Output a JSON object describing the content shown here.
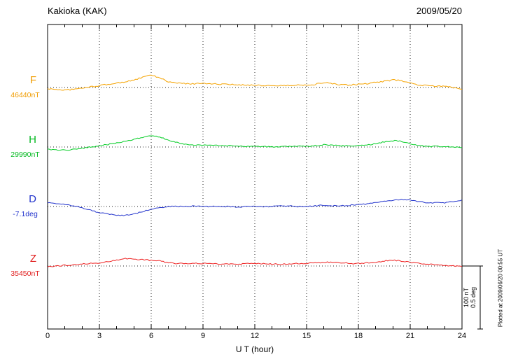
{
  "chart_data": {
    "type": "line",
    "title": "Kakioka (KAK)",
    "date_label": "2009/05/20",
    "xlabel": "U T (hour)",
    "x_range": [
      0,
      24
    ],
    "x_ticks": [
      0,
      3,
      6,
      9,
      12,
      15,
      18,
      21,
      24
    ],
    "x_minor_tick_step": 1,
    "x_start": 0,
    "x_step_hours": 0.5,
    "grid": "dotted vertical lines at 3-hour ticks, dotted horizontal baseline per channel",
    "legend_position": "left margin channel labels",
    "scale_bar": {
      "nT": 100,
      "deg": 0.5,
      "label_nT": "100 nT",
      "label_deg": "0.5 deg"
    },
    "plotted_at": "Plotted at 2009/06/20 00:55 UT",
    "series": [
      {
        "id": "F",
        "label": "F",
        "unit": "nT",
        "baseline_value": 46440,
        "baseline_label": "46440nT",
        "color": "#f5a300",
        "label_color": "#f09c00",
        "noise": 1.0,
        "values": [
          -2,
          -3,
          -4,
          -3,
          -1,
          1,
          3,
          5,
          7,
          9,
          12,
          16,
          20,
          15,
          9,
          7,
          6,
          6,
          7,
          6,
          5,
          5,
          4,
          4,
          4,
          3,
          3,
          3,
          3,
          4,
          4,
          5,
          8,
          6,
          4,
          4,
          5,
          6,
          8,
          10,
          12,
          11,
          7,
          4,
          3,
          2,
          2,
          0,
          -2
        ]
      },
      {
        "id": "H",
        "label": "H",
        "unit": "nT",
        "baseline_value": 29990,
        "baseline_label": "29990nT",
        "color": "#00cc22",
        "label_color": "#00b81e",
        "noise": 0.9,
        "values": [
          -4,
          -5,
          -5,
          -4,
          -2,
          0,
          2,
          4,
          6,
          9,
          12,
          15,
          18,
          16,
          11,
          7,
          4,
          3,
          3,
          3,
          2,
          2,
          1,
          1,
          1,
          1,
          0,
          0,
          1,
          1,
          1,
          2,
          4,
          3,
          2,
          2,
          2,
          3,
          5,
          8,
          10,
          9,
          5,
          2,
          1,
          1,
          1,
          0,
          0
        ]
      },
      {
        "id": "D",
        "label": "D",
        "unit": "deg",
        "baseline_value": -7.1,
        "baseline_label": "-7.1deg",
        "color": "#2233cc",
        "label_color": "#2233cc",
        "noise": 0.004,
        "values": [
          0.03,
          0.025,
          0.015,
          0.005,
          -0.01,
          -0.03,
          -0.05,
          -0.06,
          -0.07,
          -0.07,
          -0.06,
          -0.04,
          -0.02,
          -0.01,
          0,
          0,
          0,
          0.005,
          0,
          0,
          0,
          0,
          -0.005,
          0,
          0,
          0,
          0,
          0.005,
          0.005,
          0,
          0,
          0.005,
          0.01,
          0.005,
          0.005,
          0.01,
          0.015,
          0.02,
          0.03,
          0.04,
          0.05,
          0.055,
          0.05,
          0.04,
          0.03,
          0.03,
          0.03,
          0.04,
          0.05
        ]
      },
      {
        "id": "Z",
        "label": "Z",
        "unit": "nT",
        "baseline_value": 35450,
        "baseline_label": "35450nT",
        "color": "#ee2020",
        "label_color": "#e01c1c",
        "noise": 0.9,
        "values": [
          -1,
          0,
          1,
          2,
          3,
          4,
          5,
          7,
          9,
          12,
          11,
          10,
          9,
          8,
          5,
          4,
          4,
          4,
          4,
          4,
          3,
          3,
          3,
          4,
          4,
          4,
          3,
          3,
          3,
          4,
          4,
          5,
          6,
          6,
          5,
          4,
          4,
          5,
          6,
          8,
          9,
          8,
          6,
          4,
          3,
          2,
          1,
          0,
          -1
        ]
      }
    ]
  }
}
